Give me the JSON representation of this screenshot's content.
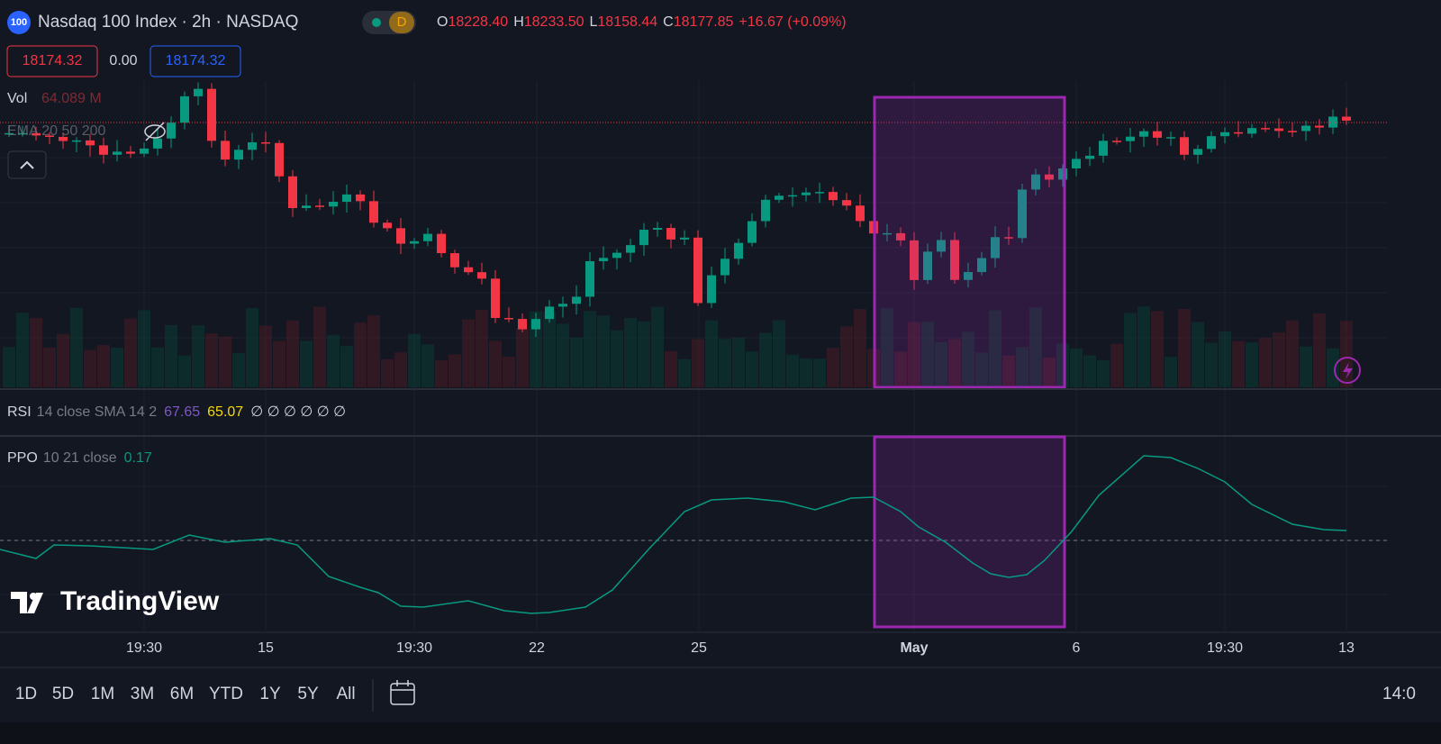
{
  "header": {
    "badge": "100",
    "title": "Nasdaq 100 Index · 2h · NASDAQ",
    "flag": "D",
    "ohlc": {
      "o_label": "O",
      "o": "18228.40",
      "h_label": "H",
      "h": "18233.50",
      "l_label": "L",
      "l": "18158.44",
      "c_label": "C",
      "c": "18177.85",
      "change": "+16.67 (+0.09%)"
    },
    "prices": {
      "sell": "18174.32",
      "spread": "0.00",
      "buy": "18174.32"
    }
  },
  "indicators": {
    "vol": {
      "name": "Vol",
      "value": "64.089 M"
    },
    "ema": {
      "name": "EMA 20 50 200"
    },
    "rsi": {
      "name": "RSI",
      "params": "14 close SMA 14 2",
      "value1": "67.65",
      "value2": "65.07",
      "empties": "∅ ∅ ∅ ∅ ∅ ∅"
    },
    "ppo": {
      "name": "PPO",
      "params": "10 21 close",
      "value": "0.17"
    }
  },
  "watermark": "TradingView",
  "time_axis": [
    "19:30",
    "15",
    "19:30",
    "22",
    "25",
    "May",
    "6",
    "19:30",
    "13"
  ],
  "ranges": [
    "1D",
    "5D",
    "1M",
    "3M",
    "6M",
    "YTD",
    "1Y",
    "5Y",
    "All"
  ],
  "clock": "14:0"
}
